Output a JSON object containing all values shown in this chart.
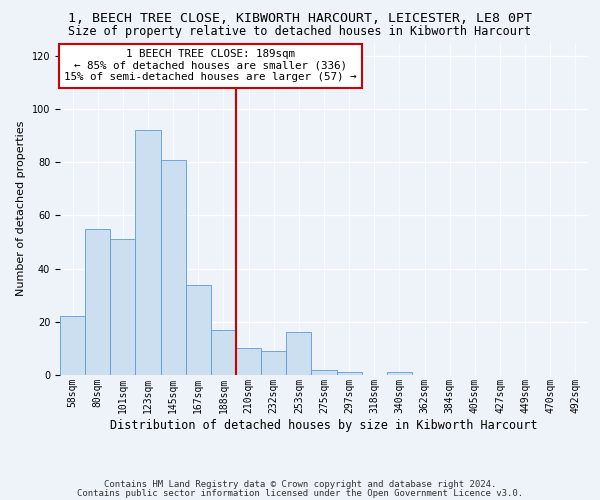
{
  "title1": "1, BEECH TREE CLOSE, KIBWORTH HARCOURT, LEICESTER, LE8 0PT",
  "title2": "Size of property relative to detached houses in Kibworth Harcourt",
  "xlabel": "Distribution of detached houses by size in Kibworth Harcourt",
  "ylabel": "Number of detached properties",
  "bar_values": [
    22,
    55,
    51,
    92,
    81,
    34,
    17,
    10,
    9,
    16,
    2,
    1,
    0,
    1,
    0,
    0,
    0,
    0,
    0,
    0,
    0
  ],
  "bar_labels": [
    "58sqm",
    "80sqm",
    "101sqm",
    "123sqm",
    "145sqm",
    "167sqm",
    "188sqm",
    "210sqm",
    "232sqm",
    "253sqm",
    "275sqm",
    "297sqm",
    "318sqm",
    "340sqm",
    "362sqm",
    "384sqm",
    "405sqm",
    "427sqm",
    "449sqm",
    "470sqm",
    "492sqm"
  ],
  "bar_color": "#ccdff0",
  "bar_edge_color": "#5b9bd5",
  "vline_index": 6.5,
  "vline_color": "#cc0000",
  "annotation_text": "1 BEECH TREE CLOSE: 189sqm\n← 85% of detached houses are smaller (336)\n15% of semi-detached houses are larger (57) →",
  "annotation_box_color": "#ffffff",
  "annotation_box_edge": "#cc0000",
  "ylim": [
    0,
    125
  ],
  "yticks": [
    0,
    20,
    40,
    60,
    80,
    100,
    120
  ],
  "footer1": "Contains HM Land Registry data © Crown copyright and database right 2024.",
  "footer2": "Contains public sector information licensed under the Open Government Licence v3.0.",
  "bg_color": "#eef2f9",
  "grid_color": "#ffffff",
  "title1_fontsize": 9.5,
  "title2_fontsize": 8.5,
  "xlabel_fontsize": 8.5,
  "ylabel_fontsize": 8,
  "footer_fontsize": 6.5,
  "annotation_fontsize": 7.8,
  "tick_fontsize": 7
}
